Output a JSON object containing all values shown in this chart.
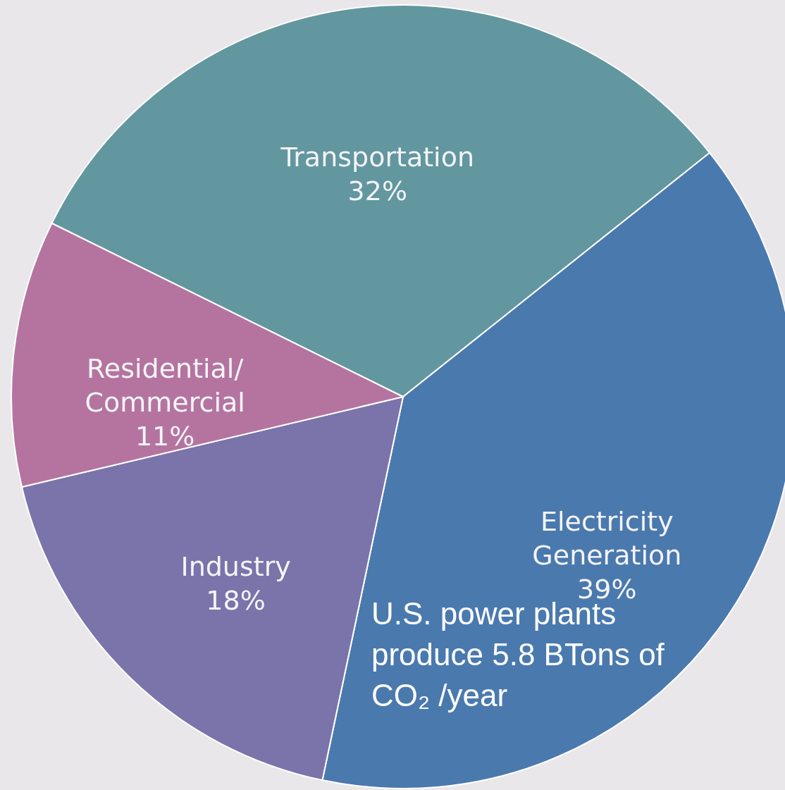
{
  "chart_data": {
    "type": "pie",
    "categories": [
      "Transportation",
      "Electricity Generation",
      "Industry",
      "Residential/Commercial"
    ],
    "values": [
      32,
      39,
      18,
      11
    ],
    "value_labels": [
      "32%",
      "39%",
      "18%",
      "11%"
    ],
    "colors": [
      "#62979f",
      "#4a79ae",
      "#7b74aa",
      "#b574a0"
    ],
    "annotations": [
      "U.S. power plants produce 5.8 BTons of CO₂ /year"
    ]
  }
}
